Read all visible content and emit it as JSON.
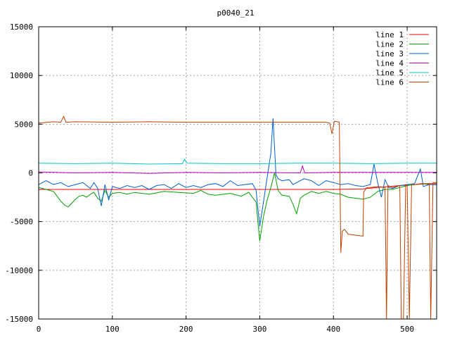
{
  "chart_data": {
    "type": "line",
    "title": "p0040_21",
    "xlim": [
      0,
      540
    ],
    "ylim": [
      -15000,
      15000
    ],
    "x_ticks": [
      0,
      100,
      200,
      300,
      400,
      500
    ],
    "y_ticks": [
      -15000,
      -10000,
      -5000,
      0,
      5000,
      10000,
      15000
    ],
    "grid": true,
    "legend_position": "top-right",
    "series": [
      {
        "name": "line 1",
        "color": "#ff0000",
        "points": [
          [
            0,
            -1700
          ],
          [
            50,
            -1700
          ],
          [
            100,
            -1700
          ],
          [
            150,
            -1700
          ],
          [
            200,
            -1700
          ],
          [
            250,
            -1700
          ],
          [
            300,
            -1700
          ],
          [
            350,
            -1700
          ],
          [
            400,
            -1700
          ],
          [
            440,
            -1650
          ],
          [
            460,
            -1500
          ],
          [
            475,
            -1400
          ],
          [
            490,
            -1300
          ],
          [
            505,
            -1250
          ],
          [
            520,
            -1150
          ],
          [
            530,
            -1100
          ],
          [
            540,
            -1100
          ]
        ]
      },
      {
        "name": "line 2",
        "color": "#00a000",
        "points": [
          [
            0,
            -1500
          ],
          [
            10,
            -1700
          ],
          [
            20,
            -1900
          ],
          [
            25,
            -2400
          ],
          [
            30,
            -2900
          ],
          [
            35,
            -3300
          ],
          [
            40,
            -3500
          ],
          [
            45,
            -3100
          ],
          [
            50,
            -2700
          ],
          [
            55,
            -2400
          ],
          [
            60,
            -2300
          ],
          [
            65,
            -2500
          ],
          [
            70,
            -2200
          ],
          [
            75,
            -2000
          ],
          [
            80,
            -2600
          ],
          [
            85,
            -2900
          ],
          [
            90,
            -1800
          ],
          [
            95,
            -2500
          ],
          [
            100,
            -2100
          ],
          [
            110,
            -2000
          ],
          [
            120,
            -2200
          ],
          [
            130,
            -2000
          ],
          [
            150,
            -2200
          ],
          [
            170,
            -1900
          ],
          [
            190,
            -2000
          ],
          [
            210,
            -2100
          ],
          [
            220,
            -1800
          ],
          [
            230,
            -2200
          ],
          [
            240,
            -2300
          ],
          [
            260,
            -2100
          ],
          [
            275,
            -2400
          ],
          [
            285,
            -2000
          ],
          [
            295,
            -3000
          ],
          [
            300,
            -7000
          ],
          [
            305,
            -4500
          ],
          [
            310,
            -2800
          ],
          [
            315,
            -1500
          ],
          [
            320,
            0
          ],
          [
            325,
            -1800
          ],
          [
            330,
            -2300
          ],
          [
            340,
            -2400
          ],
          [
            345,
            -3200
          ],
          [
            350,
            -4200
          ],
          [
            355,
            -2600
          ],
          [
            360,
            -2300
          ],
          [
            370,
            -1900
          ],
          [
            380,
            -2100
          ],
          [
            390,
            -1900
          ],
          [
            400,
            -2100
          ],
          [
            410,
            -2200
          ],
          [
            420,
            -2500
          ],
          [
            430,
            -2600
          ],
          [
            440,
            -2700
          ],
          [
            450,
            -2500
          ],
          [
            460,
            -1900
          ],
          [
            470,
            -1700
          ],
          [
            480,
            -1700
          ],
          [
            490,
            -1500
          ],
          [
            500,
            -1300
          ],
          [
            510,
            -1200
          ],
          [
            520,
            -1100
          ],
          [
            530,
            -1200
          ],
          [
            540,
            -1200
          ]
        ]
      },
      {
        "name": "line 3",
        "color": "#0060d0",
        "points": [
          [
            0,
            -1200
          ],
          [
            10,
            -800
          ],
          [
            20,
            -1200
          ],
          [
            30,
            -1000
          ],
          [
            40,
            -1400
          ],
          [
            50,
            -1200
          ],
          [
            60,
            -1000
          ],
          [
            70,
            -1600
          ],
          [
            75,
            -1000
          ],
          [
            80,
            -1600
          ],
          [
            85,
            -3400
          ],
          [
            90,
            -1200
          ],
          [
            95,
            -2800
          ],
          [
            100,
            -1400
          ],
          [
            110,
            -1600
          ],
          [
            120,
            -1300
          ],
          [
            130,
            -1500
          ],
          [
            140,
            -1300
          ],
          [
            150,
            -1700
          ],
          [
            160,
            -1300
          ],
          [
            170,
            -1200
          ],
          [
            180,
            -1600
          ],
          [
            190,
            -1100
          ],
          [
            200,
            -1500
          ],
          [
            210,
            -1300
          ],
          [
            220,
            -1500
          ],
          [
            230,
            -1200
          ],
          [
            240,
            -1100
          ],
          [
            250,
            -1400
          ],
          [
            260,
            -800
          ],
          [
            270,
            -1300
          ],
          [
            280,
            -1200
          ],
          [
            290,
            -1100
          ],
          [
            295,
            -1800
          ],
          [
            300,
            -5500
          ],
          [
            305,
            -3000
          ],
          [
            310,
            -500
          ],
          [
            315,
            2000
          ],
          [
            318,
            5600
          ],
          [
            322,
            -200
          ],
          [
            325,
            -600
          ],
          [
            330,
            -800
          ],
          [
            340,
            -700
          ],
          [
            345,
            -1200
          ],
          [
            350,
            -1000
          ],
          [
            360,
            -600
          ],
          [
            370,
            -800
          ],
          [
            380,
            -1300
          ],
          [
            390,
            -800
          ],
          [
            400,
            -1000
          ],
          [
            410,
            -1200
          ],
          [
            420,
            -1100
          ],
          [
            430,
            -1300
          ],
          [
            440,
            -1400
          ],
          [
            450,
            -1200
          ],
          [
            455,
            900
          ],
          [
            460,
            -1000
          ],
          [
            465,
            -2500
          ],
          [
            470,
            -700
          ],
          [
            475,
            -1500
          ],
          [
            480,
            -1600
          ],
          [
            490,
            -1300
          ],
          [
            500,
            -1200
          ],
          [
            510,
            -1100
          ],
          [
            518,
            400
          ],
          [
            522,
            -1400
          ],
          [
            530,
            -1200
          ],
          [
            540,
            -1200
          ]
        ]
      },
      {
        "name": "line 4",
        "color": "#c000c0",
        "points": [
          [
            0,
            100
          ],
          [
            50,
            0
          ],
          [
            100,
            50
          ],
          [
            150,
            -50
          ],
          [
            200,
            50
          ],
          [
            250,
            0
          ],
          [
            300,
            50
          ],
          [
            350,
            0
          ],
          [
            355,
            0
          ],
          [
            358,
            700
          ],
          [
            361,
            0
          ],
          [
            400,
            50
          ],
          [
            450,
            50
          ],
          [
            500,
            50
          ],
          [
            540,
            50
          ]
        ]
      },
      {
        "name": "line 5",
        "color": "#00c8c8",
        "points": [
          [
            0,
            1000
          ],
          [
            50,
            950
          ],
          [
            100,
            1000
          ],
          [
            150,
            900
          ],
          [
            195,
            950
          ],
          [
            198,
            1400
          ],
          [
            201,
            1000
          ],
          [
            250,
            950
          ],
          [
            300,
            950
          ],
          [
            350,
            1000
          ],
          [
            400,
            1000
          ],
          [
            450,
            950
          ],
          [
            500,
            1000
          ],
          [
            540,
            1000
          ]
        ]
      },
      {
        "name": "line 6",
        "color": "#c04000",
        "points": [
          [
            0,
            5100
          ],
          [
            20,
            5250
          ],
          [
            30,
            5200
          ],
          [
            34,
            5800
          ],
          [
            37,
            5200
          ],
          [
            50,
            5250
          ],
          [
            100,
            5200
          ],
          [
            150,
            5250
          ],
          [
            200,
            5200
          ],
          [
            250,
            5200
          ],
          [
            300,
            5200
          ],
          [
            350,
            5200
          ],
          [
            390,
            5200
          ],
          [
            395,
            5100
          ],
          [
            398,
            4000
          ],
          [
            401,
            5300
          ],
          [
            405,
            5250
          ],
          [
            408,
            5200
          ],
          [
            410,
            -8200
          ],
          [
            412,
            -6000
          ],
          [
            415,
            -5800
          ],
          [
            420,
            -6300
          ],
          [
            430,
            -6400
          ],
          [
            440,
            -6500
          ],
          [
            441,
            -2000
          ],
          [
            445,
            -1500
          ],
          [
            450,
            -1500
          ],
          [
            460,
            -1400
          ],
          [
            470,
            -1500
          ],
          [
            472,
            -15000
          ],
          [
            474,
            -1300
          ],
          [
            480,
            -1500
          ],
          [
            490,
            -1300
          ],
          [
            492,
            -15000
          ],
          [
            495,
            -15000
          ],
          [
            498,
            -1200
          ],
          [
            500,
            -1300
          ],
          [
            503,
            -15000
          ],
          [
            506,
            -1200
          ],
          [
            510,
            -1200
          ],
          [
            520,
            -1100
          ],
          [
            530,
            -1100
          ],
          [
            532,
            -15000
          ],
          [
            535,
            -1000
          ],
          [
            540,
            -1000
          ]
        ]
      }
    ]
  }
}
